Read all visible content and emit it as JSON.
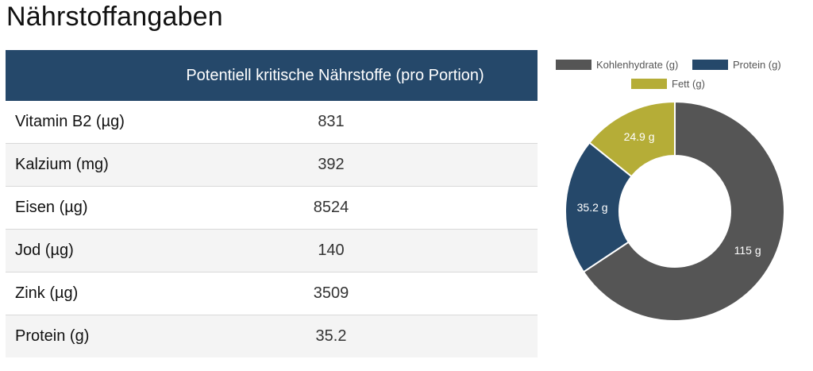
{
  "page": {
    "title": "Nährstoffangaben"
  },
  "table": {
    "header": {
      "name": "",
      "value": "Potentiell kritische Nährstoffe (pro Portion)"
    },
    "rows": [
      {
        "name": "Vitamin B2 (µg)",
        "value": "831"
      },
      {
        "name": "Kalzium (mg)",
        "value": "392"
      },
      {
        "name": "Eisen (µg)",
        "value": "8524"
      },
      {
        "name": "Jod (µg)",
        "value": "140"
      },
      {
        "name": "Zink (µg)",
        "value": "3509"
      },
      {
        "name": "Protein (g)",
        "value": "35.2"
      }
    ]
  },
  "chart_data": {
    "type": "pie",
    "donut": true,
    "legend_position": "top",
    "slices": [
      {
        "label": "Kohlenhydrate (g)",
        "value": 115,
        "display": "115 g",
        "color": "#555555"
      },
      {
        "label": "Protein (g)",
        "value": 35.2,
        "display": "35.2 g",
        "color": "#25486a"
      },
      {
        "label": "Fett (g)",
        "value": 24.9,
        "display": "24.9 g",
        "color": "#b5ad37"
      }
    ]
  }
}
